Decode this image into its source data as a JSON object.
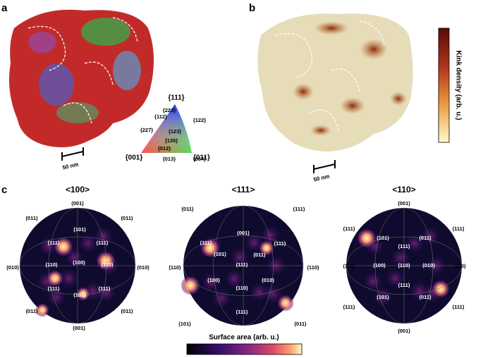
{
  "panels": {
    "a": {
      "label": "a",
      "scale_bar": "50 nm"
    },
    "b": {
      "label": "b",
      "scale_bar": "50 nm"
    },
    "c": {
      "label": "c"
    }
  },
  "ipf_key": {
    "corners": [
      "{001}",
      "{011}",
      "{111}"
    ],
    "labels": [
      "{223}",
      "{112}",
      "{122}",
      "{227}",
      "{123}",
      "{135}",
      "{012}",
      "{013}",
      "{034}"
    ]
  },
  "colorbar_b": {
    "title": "Kink density (arb. u.)"
  },
  "pole_figures": [
    {
      "title": "<100>",
      "labels": [
        "(001)",
        "(011)",
        "(011)",
        "(101)",
        "(111)",
        "(111)",
        "(010)",
        "(110)",
        "(100)",
        "(110)",
        "(010)",
        "(111)",
        "(111)",
        "(101)",
        "(011)",
        "(011)",
        "(001)"
      ]
    },
    {
      "title": "<111>",
      "labels": [
        "(011)",
        "(111)",
        "(001)",
        "(111)",
        "(101)",
        "(011)",
        "(111)",
        "(111)",
        "(110)",
        "(110)",
        "(100)",
        "(010)",
        "(110)",
        "(111)",
        "(101)",
        "(011)"
      ]
    },
    {
      "title": "<110>",
      "labels": [
        "(001)",
        "(111)",
        "(101)",
        "(011)",
        "(111)",
        "(111)",
        "(110)",
        "(100)",
        "(110)",
        "(010)",
        "(110)",
        "(111)",
        "(101)",
        "(011)",
        "(111)",
        "(111)",
        "(001)"
      ]
    }
  ],
  "colorbar_c": {
    "title": "Surface area (arb. u.)"
  }
}
